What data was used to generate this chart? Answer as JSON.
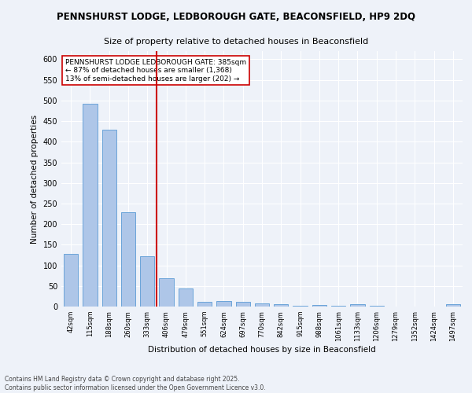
{
  "title_line1": "PENNSHURST LODGE, LEDBOROUGH GATE, BEACONSFIELD, HP9 2DQ",
  "title_line2": "Size of property relative to detached houses in Beaconsfield",
  "xlabel": "Distribution of detached houses by size in Beaconsfield",
  "ylabel": "Number of detached properties",
  "categories": [
    "42sqm",
    "115sqm",
    "188sqm",
    "260sqm",
    "333sqm",
    "406sqm",
    "479sqm",
    "551sqm",
    "624sqm",
    "697sqm",
    "770sqm",
    "842sqm",
    "915sqm",
    "988sqm",
    "1061sqm",
    "1133sqm",
    "1206sqm",
    "1279sqm",
    "1352sqm",
    "1424sqm",
    "1497sqm"
  ],
  "values": [
    127,
    492,
    430,
    228,
    122,
    68,
    43,
    12,
    14,
    11,
    8,
    6,
    1,
    4,
    1,
    6,
    1,
    0,
    0,
    0,
    5
  ],
  "bar_color": "#aec6e8",
  "bar_edge_color": "#5b9bd5",
  "vline_x_index": 4.5,
  "vline_color": "#cc0000",
  "annotation_text": "PENNSHURST LODGE LEDBOROUGH GATE: 385sqm\n← 87% of detached houses are smaller (1,368)\n13% of semi-detached houses are larger (202) →",
  "annotation_box_color": "#ffffff",
  "annotation_box_edge": "#cc0000",
  "ylim": [
    0,
    620
  ],
  "yticks": [
    0,
    50,
    100,
    150,
    200,
    250,
    300,
    350,
    400,
    450,
    500,
    550,
    600
  ],
  "footer_line1": "Contains HM Land Registry data © Crown copyright and database right 2025.",
  "footer_line2": "Contains public sector information licensed under the Open Government Licence v3.0.",
  "bg_color": "#eef2f9",
  "grid_color": "#ffffff",
  "title_fontsize": 8.5,
  "subtitle_fontsize": 8,
  "annotation_fontsize": 6.5,
  "bar_width": 0.75
}
